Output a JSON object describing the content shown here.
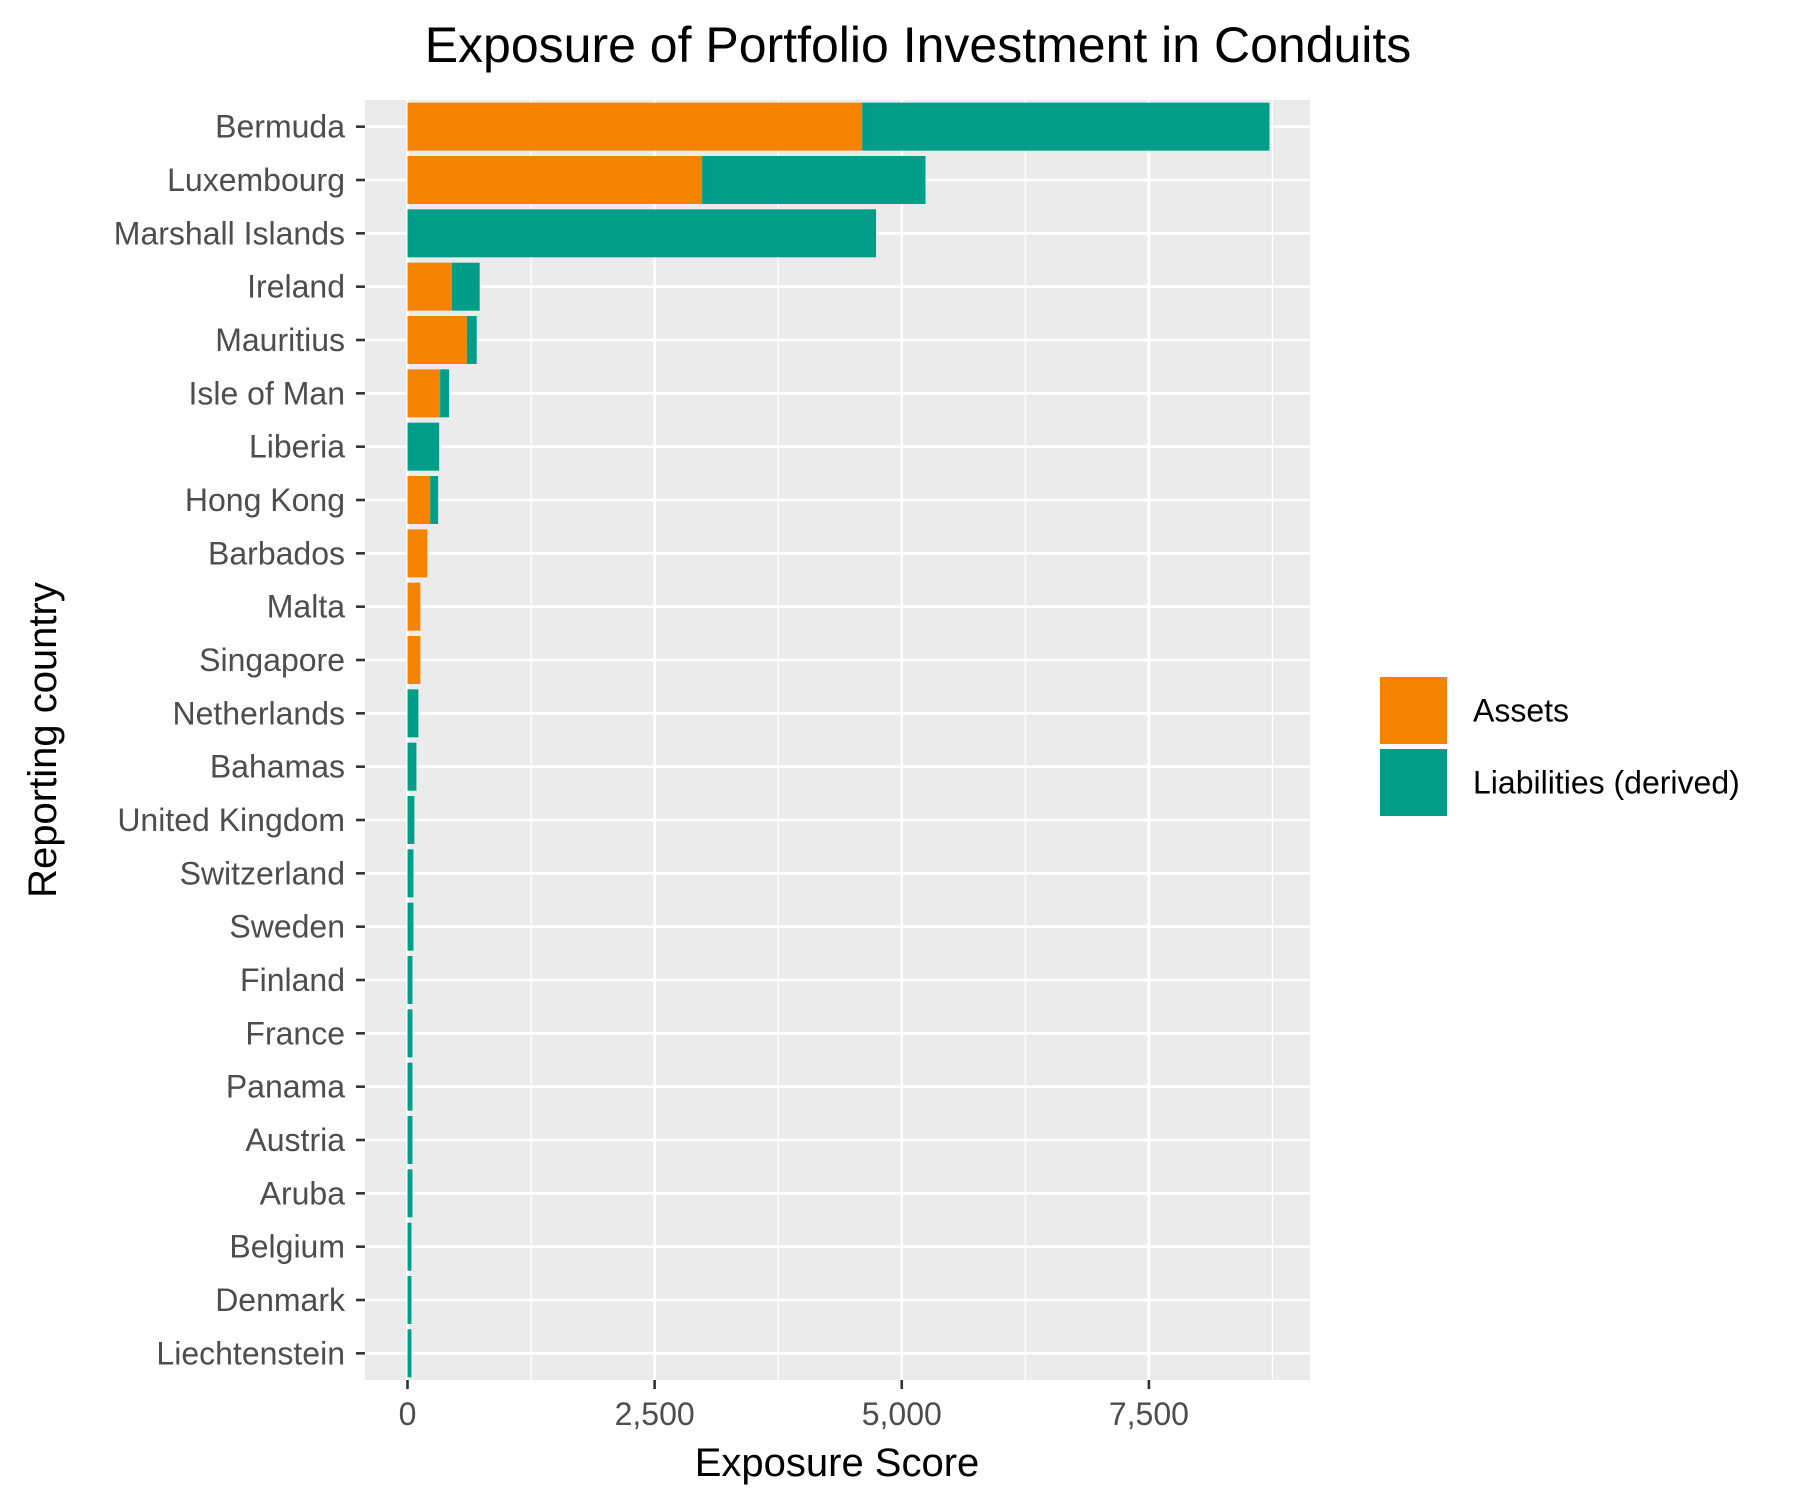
{
  "chart_data": {
    "type": "bar",
    "orientation": "horizontal",
    "stacked": true,
    "title": "Exposure of Portfolio Investment in Conduits",
    "xlabel": "Exposure Score",
    "ylabel": "Reporting country",
    "xlim": [
      -430,
      9130
    ],
    "xticks": [
      0,
      2500,
      5000,
      7500
    ],
    "xtick_labels": [
      "0",
      "2,500",
      "5,000",
      "7,500"
    ],
    "grid": true,
    "legend_position": "right",
    "categories": [
      "Bermuda",
      "Luxembourg",
      "Marshall Islands",
      "Ireland",
      "Mauritius",
      "Isle of Man",
      "Liberia",
      "Hong Kong",
      "Barbados",
      "Malta",
      "Singapore",
      "Netherlands",
      "Bahamas",
      "United Kingdom",
      "Switzerland",
      "Sweden",
      "Finland",
      "France",
      "Panama",
      "Austria",
      "Aruba",
      "Belgium",
      "Denmark",
      "Liechtenstein"
    ],
    "series": [
      {
        "name": "Assets",
        "color": "#F58300",
        "values": [
          4600,
          2980,
          0,
          450,
          600,
          330,
          0,
          230,
          200,
          130,
          130,
          0,
          0,
          0,
          0,
          0,
          0,
          0,
          0,
          0,
          0,
          0,
          0,
          0
        ]
      },
      {
        "name": "Liabilities (derived)",
        "color": "#009E88",
        "values": [
          4120,
          2260,
          4740,
          280,
          100,
          90,
          320,
          80,
          0,
          0,
          0,
          110,
          90,
          70,
          60,
          60,
          50,
          50,
          50,
          50,
          50,
          40,
          40,
          40
        ]
      }
    ]
  }
}
